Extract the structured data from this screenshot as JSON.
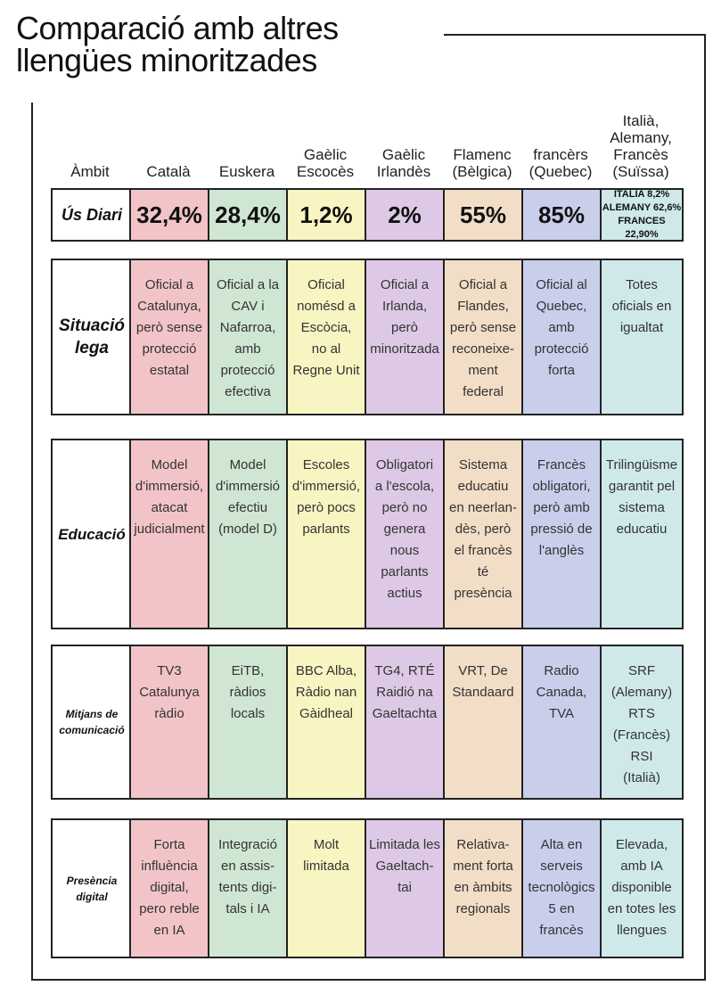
{
  "header": {
    "title": "Comparació amb altres\nllengües minoritzades"
  },
  "table": {
    "columns": [
      "Àmbit",
      "Català",
      "Euskera",
      "Gaèlic\nEscocès",
      "Gaèlic\nIrlandès",
      "Flamenc\n(Bèlgica)",
      "francèrs\n(Quebec)",
      "Italià,\nAlemany,\nFrancès\n(Suïssa)"
    ],
    "rows": [
      {
        "label": "Ús Diari",
        "cells": [
          "32,4%",
          "28,4%",
          "1,2%",
          "2%",
          "55%",
          "85%",
          "ITALIA 8,2%\nALEMANY 62,6%\nFRANCES 22,90%"
        ]
      },
      {
        "label": "Situació\nlega",
        "cells": [
          "Oficial a\nCatalunya,\nperò sense\nprotecció\nestatal",
          "Oficial a la\nCAV i\nNafarroa,\namb\nprotecció\nefectiva",
          "Oficial\nnomésd a\nEscòcia,\nno al\nRegne Unit",
          "Oficial a\nIrlanda,\nperò\nminoritzada",
          "Oficial a\nFlandes,\nperò sense\nreconeixe-\nment\nfederal",
          "Oficial al\nQuebec,\namb\nprotecció\nforta",
          "Totes\noficials en\nigualtat"
        ]
      },
      {
        "label": "Educació",
        "cells": [
          "Model\nd'immersió,\natacat\njudicialment",
          "Model\nd'immersió\nefectiu\n(model D)",
          "Escoles\nd'immersió,\nperò pocs\nparlants",
          "Obligatori\na l'escola,\nperò no\ngenera\nnous\nparlants\nactius",
          "Sistema\neducatiu\nen neerlan-\ndès, però\nel francès\nté\npresència",
          "Francès\nobligatori,\nperò amb\npressió de\nl'anglès",
          "Trilingüisme\ngarantit pel\nsistema\neducatiu"
        ]
      },
      {
        "label": "Mitjans de\ncomunicació",
        "cells": [
          "TV3\nCatalunya\nràdio",
          "EiTB,\nràdios\nlocals",
          "BBC Alba,\nRàdio nan\nGàidheal",
          "TG4, RTÉ\nRaidió na\nGaeltachta",
          "VRT, De\nStandaard",
          "Radio\nCanada,\nTVA",
          "SRF\n(Alemany)\nRTS\n(Francès)\nRSI\n(Italià)"
        ]
      },
      {
        "label": "Presència\ndigital",
        "cells": [
          "Forta\ninfluència\ndigital,\npero reble\nen IA",
          "Integració\nen assis-\ntents digi-\ntals i IA",
          "Molt\nlimitada",
          "Limitada les\nGaeltach-\ntai",
          "Relativa-\nment forta\nen àmbits\nregionals",
          "Alta en\nserveis\ntecnològics\n5 en\nfrancès",
          "Elevada,\namb IA\ndisponible\nen totes les\nllengues"
        ]
      }
    ]
  }
}
